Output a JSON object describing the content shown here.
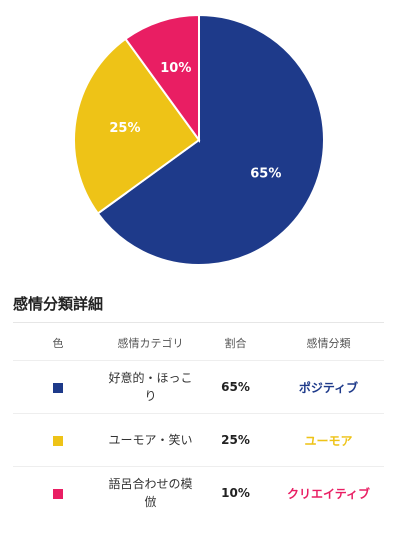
{
  "chart_data": {
    "type": "pie",
    "slices": [
      {
        "label": "65%",
        "value": 65,
        "color": "#1e3a8a"
      },
      {
        "label": "25%",
        "value": 25,
        "color": "#eec317"
      },
      {
        "label": "10%",
        "value": 10,
        "color": "#e91e63"
      }
    ]
  },
  "table": {
    "title": "感情分類詳細",
    "headers": {
      "color": "色",
      "category": "感情カテゴリ",
      "ratio": "割合",
      "type": "感情分類"
    },
    "rows": [
      {
        "color": "#1e3a8a",
        "category": "好意的・ほっこり",
        "ratio": "65%",
        "type": "ポジティブ",
        "type_color": "#1e3a8a"
      },
      {
        "color": "#eec317",
        "category": "ユーモア・笑い",
        "ratio": "25%",
        "type": "ユーモア",
        "type_color": "#eec317"
      },
      {
        "color": "#e91e63",
        "category": "語呂合わせの模倣",
        "ratio": "10%",
        "type": "クリエイティブ",
        "type_color": "#e91e63"
      }
    ]
  }
}
